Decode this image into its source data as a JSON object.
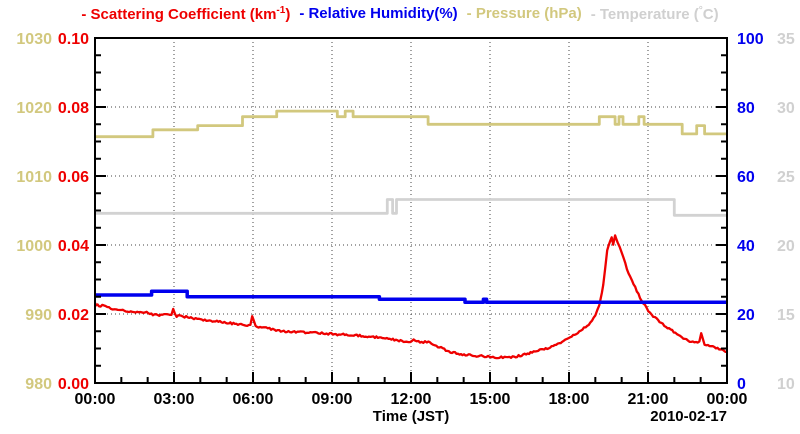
{
  "title": {
    "segments": [
      {
        "pre": "- Scattering Coefficient (km",
        "sup": "-1",
        "post": ")",
        "color": "#ee0000"
      },
      {
        "pre": "- Relative Humidity(%)",
        "sup": "",
        "post": "",
        "color": "#0000ee"
      },
      {
        "pre": "- Pressure (hPa)",
        "sup": "",
        "post": "",
        "color": "#d2c87e"
      },
      {
        "pre": "- Temperature (",
        "sup": "°",
        "post": "C)",
        "color": "#d0d0d0"
      }
    ]
  },
  "chart_data": {
    "type": "line",
    "background": "#ffffff",
    "grid": true,
    "x_axis": {
      "label": "Time (JST)",
      "date_label": "2010-02-17",
      "range_hours": [
        0,
        24
      ],
      "major_ticks": [
        "00:00",
        "03:00",
        "06:00",
        "09:00",
        "12:00",
        "15:00",
        "18:00",
        "21:00",
        "00:00"
      ],
      "minor_tick_interval_hours": 1
    },
    "y_axes": [
      {
        "id": "pressure",
        "label": "Pressure (hPa)",
        "side": "left-outer",
        "color": "#d2c87e",
        "min": 980,
        "max": 1030,
        "tick_labels": [
          "980",
          "990",
          "1000",
          "1010",
          "1020",
          "1030"
        ]
      },
      {
        "id": "scattering",
        "label": "Scattering Coefficient (km-1)",
        "side": "left-inner",
        "color": "#ee0000",
        "min": 0.0,
        "max": 0.1,
        "tick_labels": [
          "0.00",
          "0.02",
          "0.04",
          "0.06",
          "0.08",
          "0.10"
        ]
      },
      {
        "id": "humidity",
        "label": "Relative Humidity(%)",
        "side": "right-inner",
        "color": "#0000ee",
        "min": 0,
        "max": 100,
        "tick_labels": [
          "0",
          "20",
          "40",
          "60",
          "80",
          "100"
        ]
      },
      {
        "id": "temperature",
        "label": "Temperature (C)",
        "side": "right-outer",
        "color": "#d0d0d0",
        "min": 10,
        "max": 35,
        "tick_labels": [
          "10",
          "15",
          "20",
          "25",
          "30",
          "35"
        ]
      }
    ],
    "series": [
      {
        "id": "pressure",
        "name": "Pressure (hPa)",
        "axis": "pressure",
        "color": "#d2c87e",
        "width": 2.8,
        "step": true,
        "noise": 0,
        "points": [
          [
            0,
            1015.7
          ],
          [
            2.2,
            1016.7
          ],
          [
            3.9,
            1017.3
          ],
          [
            5.6,
            1018.6
          ],
          [
            6.9,
            1019.4
          ],
          [
            9.2,
            1018.6
          ],
          [
            9.5,
            1019.4
          ],
          [
            9.8,
            1018.6
          ],
          [
            12.65,
            1017.5
          ],
          [
            19.15,
            1018.6
          ],
          [
            19.75,
            1017.5
          ],
          [
            19.9,
            1018.6
          ],
          [
            20.05,
            1017.5
          ],
          [
            20.65,
            1018.6
          ],
          [
            20.85,
            1017.5
          ],
          [
            22.3,
            1016.1
          ],
          [
            22.85,
            1017.3
          ],
          [
            23.15,
            1016.1
          ],
          [
            24,
            1016.1
          ]
        ]
      },
      {
        "id": "temperature",
        "name": "Temperature (C)",
        "axis": "temperature",
        "color": "#d2d2d2",
        "width": 2.8,
        "step": true,
        "noise": 0,
        "points": [
          [
            0,
            22.3
          ],
          [
            11.1,
            23.3
          ],
          [
            11.3,
            22.3
          ],
          [
            11.45,
            23.3
          ],
          [
            22.0,
            22.15
          ],
          [
            24,
            22.15
          ]
        ]
      },
      {
        "id": "scattering",
        "name": "Scattering Coefficient (km-1)",
        "axis": "scattering",
        "color": "#ee0000",
        "width": 2.3,
        "step": false,
        "noise": 0.00028,
        "points": [
          [
            0,
            0.023
          ],
          [
            0.15,
            0.0223
          ],
          [
            0.4,
            0.0224
          ],
          [
            0.6,
            0.0216
          ],
          [
            0.8,
            0.0211
          ],
          [
            1.0,
            0.0213
          ],
          [
            1.3,
            0.0206
          ],
          [
            1.6,
            0.0204
          ],
          [
            1.9,
            0.0206
          ],
          [
            2.2,
            0.0198
          ],
          [
            2.5,
            0.0196
          ],
          [
            2.7,
            0.0199
          ],
          [
            2.9,
            0.0196
          ],
          [
            2.97,
            0.0213
          ],
          [
            3.1,
            0.0194
          ],
          [
            3.4,
            0.0192
          ],
          [
            3.7,
            0.0188
          ],
          [
            4.0,
            0.0184
          ],
          [
            4.4,
            0.0181
          ],
          [
            4.8,
            0.0177
          ],
          [
            5.2,
            0.0173
          ],
          [
            5.6,
            0.0169
          ],
          [
            5.9,
            0.0166
          ],
          [
            5.97,
            0.0196
          ],
          [
            6.1,
            0.0163
          ],
          [
            6.5,
            0.0159
          ],
          [
            7.0,
            0.0151
          ],
          [
            7.4,
            0.0149
          ],
          [
            7.8,
            0.0147
          ],
          [
            8.3,
            0.0146
          ],
          [
            8.8,
            0.0143
          ],
          [
            9.2,
            0.0141
          ],
          [
            9.6,
            0.014
          ],
          [
            10.0,
            0.0138
          ],
          [
            10.4,
            0.0135
          ],
          [
            10.8,
            0.0132
          ],
          [
            11.2,
            0.0128
          ],
          [
            11.6,
            0.0122
          ],
          [
            11.9,
            0.0119
          ],
          [
            12.1,
            0.0124
          ],
          [
            12.4,
            0.0118
          ],
          [
            12.6,
            0.012
          ],
          [
            12.9,
            0.011
          ],
          [
            13.2,
            0.01
          ],
          [
            13.5,
            0.0089
          ],
          [
            13.9,
            0.0084
          ],
          [
            14.3,
            0.008
          ],
          [
            14.8,
            0.0077
          ],
          [
            15.3,
            0.0074
          ],
          [
            15.8,
            0.0075
          ],
          [
            16.2,
            0.008
          ],
          [
            16.6,
            0.0089
          ],
          [
            17.0,
            0.0097
          ],
          [
            17.4,
            0.0107
          ],
          [
            17.8,
            0.0122
          ],
          [
            18.1,
            0.0136
          ],
          [
            18.45,
            0.0152
          ],
          [
            18.75,
            0.017
          ],
          [
            19.0,
            0.0196
          ],
          [
            19.15,
            0.0225
          ],
          [
            19.3,
            0.0282
          ],
          [
            19.45,
            0.0386
          ],
          [
            19.55,
            0.041
          ],
          [
            19.62,
            0.0422
          ],
          [
            19.68,
            0.0403
          ],
          [
            19.75,
            0.0427
          ],
          [
            19.85,
            0.0406
          ],
          [
            20.0,
            0.0379
          ],
          [
            20.2,
            0.0331
          ],
          [
            20.45,
            0.0286
          ],
          [
            20.7,
            0.0248
          ],
          [
            20.95,
            0.0216
          ],
          [
            21.2,
            0.0193
          ],
          [
            21.5,
            0.0174
          ],
          [
            21.8,
            0.0158
          ],
          [
            22.1,
            0.0143
          ],
          [
            22.4,
            0.0128
          ],
          [
            22.7,
            0.0118
          ],
          [
            22.95,
            0.0119
          ],
          [
            23.02,
            0.0146
          ],
          [
            23.15,
            0.0112
          ],
          [
            23.4,
            0.0106
          ],
          [
            23.7,
            0.0098
          ],
          [
            24,
            0.009
          ]
        ]
      },
      {
        "id": "humidity",
        "name": "Relative Humidity(%)",
        "axis": "humidity",
        "color": "#0000ee",
        "width": 3.5,
        "step": true,
        "noise": 0,
        "points": [
          [
            0,
            25.5
          ],
          [
            2.15,
            26.6
          ],
          [
            3.5,
            25.0
          ],
          [
            10.8,
            24.3
          ],
          [
            14.05,
            23.4
          ],
          [
            14.75,
            24.3
          ],
          [
            14.87,
            23.4
          ],
          [
            24,
            23.4
          ]
        ]
      }
    ]
  }
}
